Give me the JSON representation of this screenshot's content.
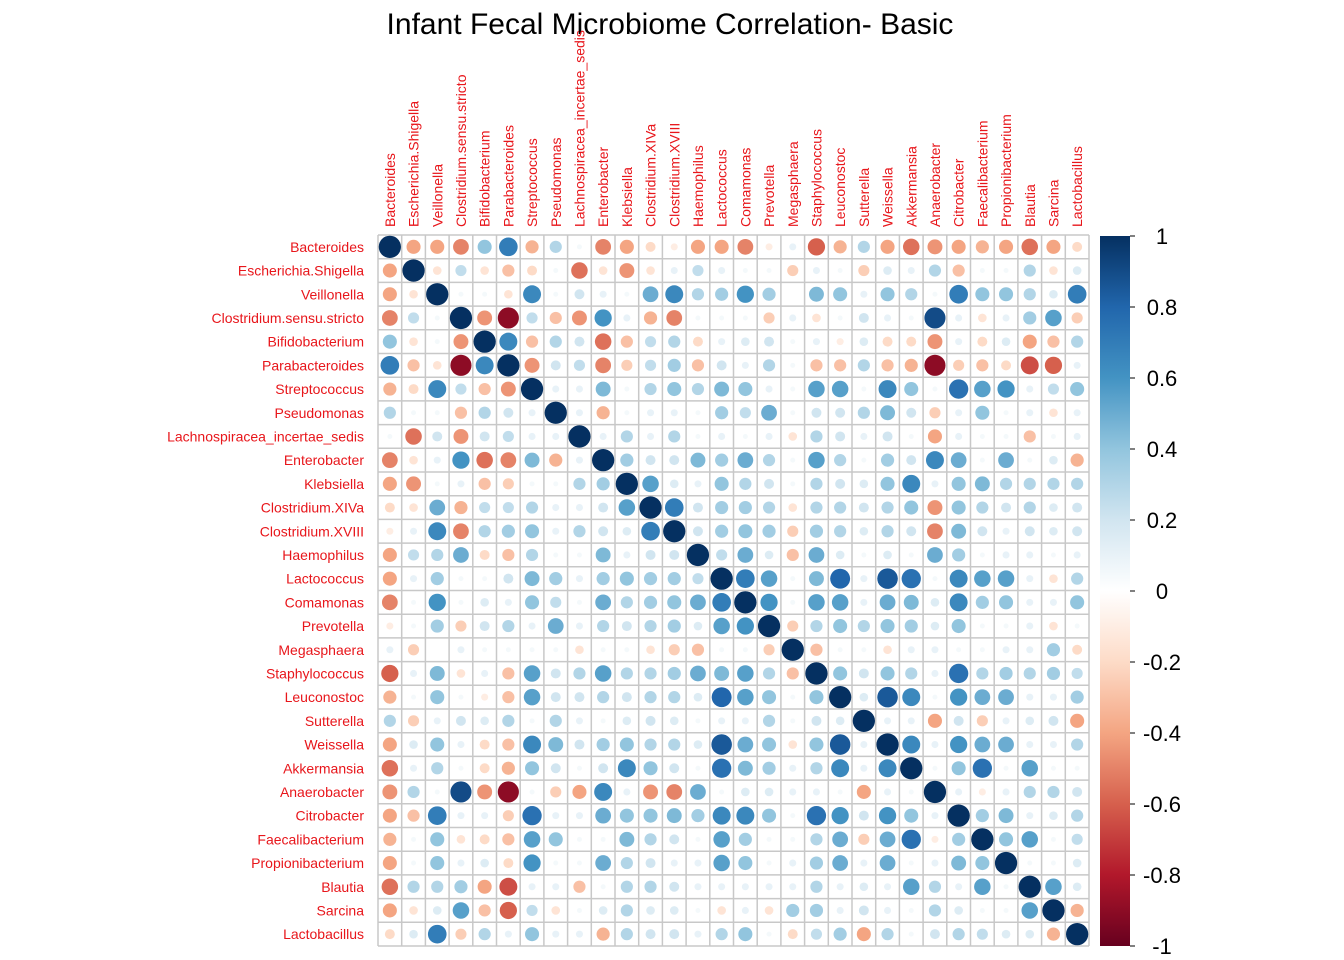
{
  "chart_data": {
    "type": "heatmap",
    "subtype": "correlation-matrix-circles",
    "title": "Infant Fecal Microbiome Correlation- Basic",
    "label_color": "#e8161b",
    "grid_color": "#c8c8c8",
    "colorscale": {
      "low": "#67001f",
      "mid": "#ffffff",
      "high": "#053061",
      "stops": [
        {
          "v": -1.0,
          "c": "#67001f"
        },
        {
          "v": -0.8,
          "c": "#b2182b"
        },
        {
          "v": -0.6,
          "c": "#d6604d"
        },
        {
          "v": -0.4,
          "c": "#f4a582"
        },
        {
          "v": -0.2,
          "c": "#fddbc7"
        },
        {
          "v": 0.0,
          "c": "#ffffff"
        },
        {
          "v": 0.2,
          "c": "#d1e5f0"
        },
        {
          "v": 0.4,
          "c": "#92c5de"
        },
        {
          "v": 0.6,
          "c": "#4393c3"
        },
        {
          "v": 0.8,
          "c": "#2166ac"
        },
        {
          "v": 1.0,
          "c": "#053061"
        }
      ]
    },
    "legend_ticks": [
      "1",
      "0.8",
      "0.6",
      "0.4",
      "0.2",
      "0",
      "-0.2",
      "-0.4",
      "-0.6",
      "-0.8",
      "-1"
    ],
    "legend_tick_values": [
      1,
      0.8,
      0.6,
      0.4,
      0.2,
      0,
      -0.2,
      -0.4,
      -0.6,
      -0.8,
      -1
    ],
    "legend_placement": "right",
    "variables": [
      "Bacteroides",
      "Escherichia.Shigella",
      "Veillonella",
      "Clostridium.sensu.stricto",
      "Bifidobacterium",
      "Parabacteroides",
      "Streptococcus",
      "Pseudomonas",
      "Lachnospiracea_incertae_sedis",
      "Enterobacter",
      "Klebsiella",
      "Clostridium.XIVa",
      "Clostridium.XVIII",
      "Haemophilus",
      "Lactococcus",
      "Comamonas",
      "Prevotella",
      "Megasphaera",
      "Staphylococcus",
      "Leuconostoc",
      "Sutterella",
      "Weissella",
      "Akkermansia",
      "Anaerobacter",
      "Citrobacter",
      "Faecalibacterium",
      "Propionibacterium",
      "Blautia",
      "Sarcina",
      "Lactobacillus"
    ],
    "matrix": [
      [
        1.0,
        -0.4,
        -0.4,
        -0.5,
        0.4,
        0.7,
        -0.35,
        0.3,
        0.05,
        -0.5,
        -0.4,
        -0.2,
        -0.1,
        -0.4,
        -0.4,
        -0.5,
        -0.1,
        0.1,
        -0.6,
        -0.35,
        0.3,
        -0.4,
        -0.55,
        -0.45,
        -0.4,
        -0.35,
        -0.4,
        -0.55,
        -0.4,
        -0.2
      ],
      [
        -0.4,
        1.0,
        -0.15,
        0.25,
        -0.15,
        -0.3,
        -0.2,
        0.05,
        -0.55,
        -0.15,
        -0.45,
        -0.15,
        0.1,
        0.25,
        0.1,
        0.05,
        0.05,
        -0.25,
        0.1,
        0.05,
        -0.25,
        0.15,
        0.1,
        0.3,
        -0.3,
        0.05,
        0.05,
        0.3,
        -0.15,
        0.15
      ],
      [
        -0.4,
        -0.15,
        1.0,
        0.05,
        0.05,
        -0.15,
        0.65,
        0.05,
        0.2,
        0.1,
        0.05,
        0.5,
        0.65,
        0.3,
        0.35,
        0.6,
        0.35,
        0.0,
        0.45,
        0.4,
        0.1,
        0.4,
        0.3,
        0.05,
        0.7,
        0.4,
        0.4,
        0.3,
        0.15,
        0.7
      ],
      [
        -0.5,
        0.25,
        0.05,
        1.0,
        -0.45,
        -0.9,
        0.25,
        -0.3,
        -0.45,
        0.6,
        0.1,
        -0.35,
        -0.5,
        0.05,
        0.05,
        0.05,
        -0.25,
        0.1,
        -0.15,
        0.05,
        0.2,
        0.1,
        0.05,
        0.9,
        0.1,
        -0.15,
        0.1,
        0.35,
        0.55,
        -0.25
      ],
      [
        0.4,
        -0.15,
        0.05,
        -0.45,
        1.0,
        0.65,
        -0.3,
        0.3,
        0.2,
        -0.55,
        -0.3,
        0.25,
        0.3,
        -0.2,
        0.1,
        0.15,
        0.2,
        0.05,
        0.1,
        -0.1,
        0.15,
        -0.2,
        -0.2,
        -0.45,
        0.1,
        -0.2,
        0.15,
        -0.4,
        -0.3,
        0.3
      ],
      [
        0.7,
        -0.3,
        -0.15,
        -0.9,
        0.65,
        1.0,
        -0.45,
        0.2,
        0.25,
        -0.5,
        -0.25,
        0.25,
        0.35,
        -0.3,
        0.2,
        0.1,
        0.3,
        0.05,
        -0.3,
        -0.3,
        0.3,
        -0.3,
        -0.35,
        -0.9,
        -0.25,
        -0.3,
        -0.2,
        -0.65,
        -0.6,
        0.1
      ],
      [
        -0.35,
        -0.2,
        0.65,
        0.25,
        -0.3,
        -0.45,
        1.0,
        0.1,
        0.1,
        0.45,
        0.05,
        0.3,
        0.4,
        0.3,
        0.45,
        0.4,
        0.1,
        0.05,
        0.55,
        0.55,
        0.05,
        0.65,
        0.4,
        0.05,
        0.75,
        0.55,
        0.6,
        0.1,
        0.25,
        0.4
      ],
      [
        0.3,
        0.05,
        0.05,
        -0.3,
        0.3,
        0.2,
        0.1,
        1.0,
        0.1,
        -0.35,
        0.05,
        0.1,
        0.1,
        0.05,
        0.35,
        0.25,
        0.5,
        0.05,
        0.2,
        0.2,
        0.3,
        0.45,
        0.2,
        -0.25,
        0.1,
        0.4,
        0.05,
        0.1,
        -0.15,
        0.1
      ],
      [
        0.05,
        -0.55,
        0.2,
        -0.45,
        0.2,
        0.25,
        0.1,
        0.1,
        1.0,
        0.1,
        0.3,
        0.1,
        0.3,
        0.05,
        0.1,
        0.05,
        0.1,
        -0.15,
        0.3,
        0.2,
        0.1,
        0.2,
        0.05,
        -0.4,
        0.1,
        0.05,
        0.05,
        -0.3,
        0.05,
        0.1
      ],
      [
        -0.5,
        -0.15,
        0.1,
        0.6,
        -0.55,
        -0.5,
        0.45,
        -0.35,
        0.1,
        1.0,
        0.35,
        0.2,
        0.2,
        0.45,
        0.35,
        0.5,
        0.3,
        0.05,
        0.55,
        0.3,
        0.05,
        0.35,
        0.2,
        0.65,
        0.5,
        0.05,
        0.5,
        0.05,
        0.15,
        -0.35
      ],
      [
        -0.4,
        -0.45,
        0.05,
        0.1,
        -0.3,
        -0.25,
        0.05,
        0.05,
        0.3,
        0.35,
        1.0,
        0.55,
        0.15,
        0.1,
        0.4,
        0.3,
        0.2,
        0.05,
        0.3,
        0.2,
        0.15,
        0.4,
        0.65,
        0.1,
        0.4,
        0.45,
        0.3,
        0.3,
        0.3,
        0.3
      ],
      [
        -0.2,
        -0.15,
        0.5,
        -0.35,
        0.25,
        0.25,
        0.3,
        0.1,
        0.1,
        0.2,
        0.55,
        1.0,
        0.7,
        0.2,
        0.35,
        0.35,
        0.3,
        -0.15,
        0.3,
        0.3,
        0.2,
        0.3,
        0.4,
        -0.45,
        0.4,
        0.3,
        0.2,
        0.3,
        0.15,
        0.2
      ],
      [
        -0.1,
        0.1,
        0.65,
        -0.5,
        0.3,
        0.35,
        0.4,
        0.1,
        0.3,
        0.2,
        0.15,
        0.7,
        1.0,
        0.2,
        0.35,
        0.4,
        0.35,
        -0.25,
        0.35,
        0.3,
        0.15,
        0.3,
        0.2,
        -0.5,
        0.45,
        0.2,
        0.1,
        0.2,
        0.15,
        0.2
      ],
      [
        -0.4,
        0.25,
        0.3,
        0.5,
        -0.2,
        -0.3,
        0.3,
        0.05,
        0.05,
        0.45,
        0.1,
        0.2,
        0.2,
        1.0,
        0.25,
        0.5,
        0.15,
        -0.3,
        0.5,
        0.15,
        0.05,
        0.15,
        0.05,
        0.5,
        0.35,
        0.05,
        0.1,
        0.1,
        0.05,
        0.1
      ],
      [
        -0.4,
        0.1,
        0.35,
        0.05,
        0.05,
        0.2,
        0.45,
        0.35,
        0.1,
        0.35,
        0.4,
        0.35,
        0.35,
        0.25,
        1.0,
        0.7,
        0.55,
        0.05,
        0.45,
        0.8,
        0.1,
        0.85,
        0.75,
        0.05,
        0.65,
        0.55,
        0.55,
        0.1,
        -0.15,
        0.3
      ],
      [
        -0.5,
        0.05,
        0.6,
        0.05,
        0.15,
        0.1,
        0.4,
        0.25,
        0.05,
        0.5,
        0.3,
        0.35,
        0.4,
        0.5,
        0.7,
        1.0,
        0.6,
        0.05,
        0.55,
        0.55,
        0.1,
        0.5,
        0.45,
        0.15,
        0.65,
        0.35,
        0.4,
        0.1,
        0.1,
        0.4
      ],
      [
        -0.1,
        0.05,
        0.35,
        -0.25,
        0.2,
        0.3,
        0.1,
        0.5,
        0.1,
        0.3,
        0.2,
        0.3,
        0.35,
        0.15,
        0.55,
        0.6,
        1.0,
        -0.25,
        0.3,
        0.4,
        0.3,
        0.4,
        0.35,
        0.15,
        0.4,
        0.05,
        0.05,
        0.1,
        -0.15,
        0.05
      ],
      [
        0.1,
        -0.25,
        0.0,
        0.1,
        0.05,
        0.05,
        0.05,
        0.05,
        -0.15,
        0.05,
        0.05,
        -0.15,
        -0.25,
        -0.3,
        0.05,
        0.05,
        -0.25,
        1.0,
        -0.3,
        0.05,
        0.05,
        -0.15,
        0.1,
        0.1,
        0.05,
        0.05,
        0.1,
        0.1,
        0.35,
        -0.2
      ],
      [
        -0.6,
        0.1,
        0.45,
        -0.15,
        0.1,
        -0.3,
        0.55,
        0.2,
        0.3,
        0.55,
        0.3,
        0.3,
        0.35,
        0.5,
        0.45,
        0.55,
        0.3,
        -0.3,
        1.0,
        0.4,
        0.2,
        0.4,
        0.3,
        0.1,
        0.75,
        0.3,
        0.35,
        0.3,
        0.35,
        0.25
      ],
      [
        -0.35,
        0.05,
        0.4,
        0.05,
        -0.1,
        -0.3,
        0.55,
        0.2,
        0.2,
        0.3,
        0.2,
        0.3,
        0.3,
        0.15,
        0.8,
        0.55,
        0.4,
        0.05,
        0.4,
        1.0,
        0.15,
        0.85,
        0.65,
        0.05,
        0.6,
        0.5,
        0.5,
        0.1,
        0.1,
        0.35
      ],
      [
        0.3,
        -0.25,
        0.1,
        0.2,
        0.15,
        0.3,
        0.05,
        0.3,
        0.1,
        0.05,
        0.15,
        0.2,
        0.15,
        0.05,
        0.1,
        0.1,
        0.3,
        0.05,
        0.2,
        0.15,
        1.0,
        0.1,
        0.1,
        -0.4,
        0.2,
        -0.25,
        0.1,
        0.15,
        0.2,
        -0.4
      ],
      [
        -0.4,
        0.15,
        0.4,
        0.1,
        -0.2,
        -0.3,
        0.65,
        0.45,
        0.2,
        0.35,
        0.4,
        0.3,
        0.3,
        0.15,
        0.85,
        0.5,
        0.4,
        -0.15,
        0.4,
        0.85,
        0.1,
        1.0,
        0.65,
        0.1,
        0.6,
        0.5,
        0.5,
        0.1,
        0.1,
        0.3
      ],
      [
        -0.55,
        0.1,
        0.3,
        0.05,
        -0.2,
        -0.35,
        0.4,
        0.2,
        0.05,
        0.2,
        0.65,
        0.4,
        0.2,
        0.05,
        0.75,
        0.45,
        0.35,
        0.1,
        0.3,
        0.65,
        0.1,
        0.65,
        1.0,
        0.05,
        0.4,
        0.75,
        0.05,
        0.55,
        0.05,
        0.05
      ],
      [
        -0.45,
        0.3,
        0.05,
        0.9,
        -0.45,
        -0.9,
        0.05,
        -0.25,
        -0.4,
        0.65,
        0.1,
        -0.45,
        -0.5,
        0.5,
        0.05,
        0.15,
        0.15,
        0.1,
        0.1,
        0.05,
        -0.4,
        0.1,
        0.05,
        1.0,
        0.1,
        -0.1,
        0.1,
        0.3,
        0.3,
        0.2
      ],
      [
        -0.4,
        -0.3,
        0.7,
        0.1,
        0.1,
        -0.25,
        0.75,
        0.1,
        0.1,
        0.5,
        0.4,
        0.4,
        0.45,
        0.35,
        0.65,
        0.65,
        0.4,
        0.05,
        0.75,
        0.6,
        0.2,
        0.6,
        0.4,
        0.1,
        1.0,
        0.35,
        0.45,
        0.1,
        0.15,
        0.3
      ],
      [
        -0.35,
        0.05,
        0.4,
        -0.15,
        -0.2,
        -0.3,
        0.55,
        0.4,
        0.05,
        0.05,
        0.45,
        0.3,
        0.2,
        0.05,
        0.55,
        0.35,
        0.05,
        0.05,
        0.3,
        0.5,
        -0.25,
        0.5,
        0.75,
        -0.1,
        0.35,
        1.0,
        0.4,
        0.55,
        0.05,
        0.25
      ],
      [
        -0.4,
        0.05,
        0.4,
        0.1,
        0.15,
        -0.2,
        0.6,
        0.05,
        0.05,
        0.5,
        0.3,
        0.2,
        0.1,
        0.1,
        0.55,
        0.4,
        0.05,
        0.1,
        0.35,
        0.5,
        0.1,
        0.5,
        0.05,
        0.1,
        0.45,
        0.4,
        1.0,
        0.05,
        0.05,
        0.15
      ],
      [
        -0.55,
        0.3,
        0.3,
        0.35,
        -0.4,
        -0.65,
        0.1,
        0.1,
        -0.3,
        0.05,
        0.3,
        0.3,
        0.2,
        0.1,
        0.1,
        0.1,
        0.1,
        0.1,
        0.3,
        0.1,
        0.15,
        0.1,
        0.55,
        0.3,
        0.1,
        0.55,
        0.05,
        1.0,
        0.55,
        0.15
      ],
      [
        -0.4,
        -0.15,
        0.15,
        0.55,
        -0.3,
        -0.6,
        0.25,
        -0.15,
        0.05,
        0.15,
        0.3,
        0.15,
        0.15,
        0.05,
        -0.15,
        0.1,
        -0.15,
        0.35,
        0.35,
        0.1,
        0.2,
        0.1,
        0.05,
        0.3,
        0.15,
        0.05,
        0.05,
        0.55,
        1.0,
        -0.35
      ],
      [
        -0.2,
        0.15,
        0.7,
        -0.25,
        0.3,
        0.1,
        0.4,
        0.1,
        0.1,
        -0.35,
        0.3,
        0.2,
        0.2,
        0.1,
        0.3,
        0.4,
        0.05,
        -0.2,
        0.25,
        0.35,
        -0.4,
        0.3,
        0.05,
        0.2,
        0.3,
        0.25,
        0.15,
        0.15,
        -0.35,
        1.0
      ]
    ]
  }
}
